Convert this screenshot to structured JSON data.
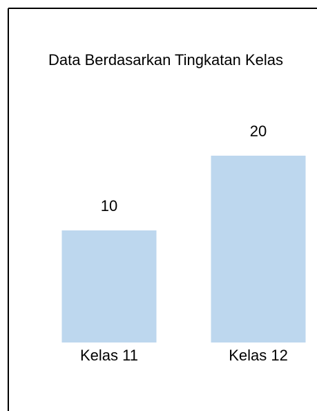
{
  "chart_data": {
    "type": "bar",
    "title": "Data Berdasarkan Tingkatan Kelas",
    "categories": [
      "Kelas 11",
      "Kelas 12"
    ],
    "values": [
      10,
      20
    ],
    "color": "#bdd7ee",
    "ylim": [
      -5,
      25
    ]
  }
}
